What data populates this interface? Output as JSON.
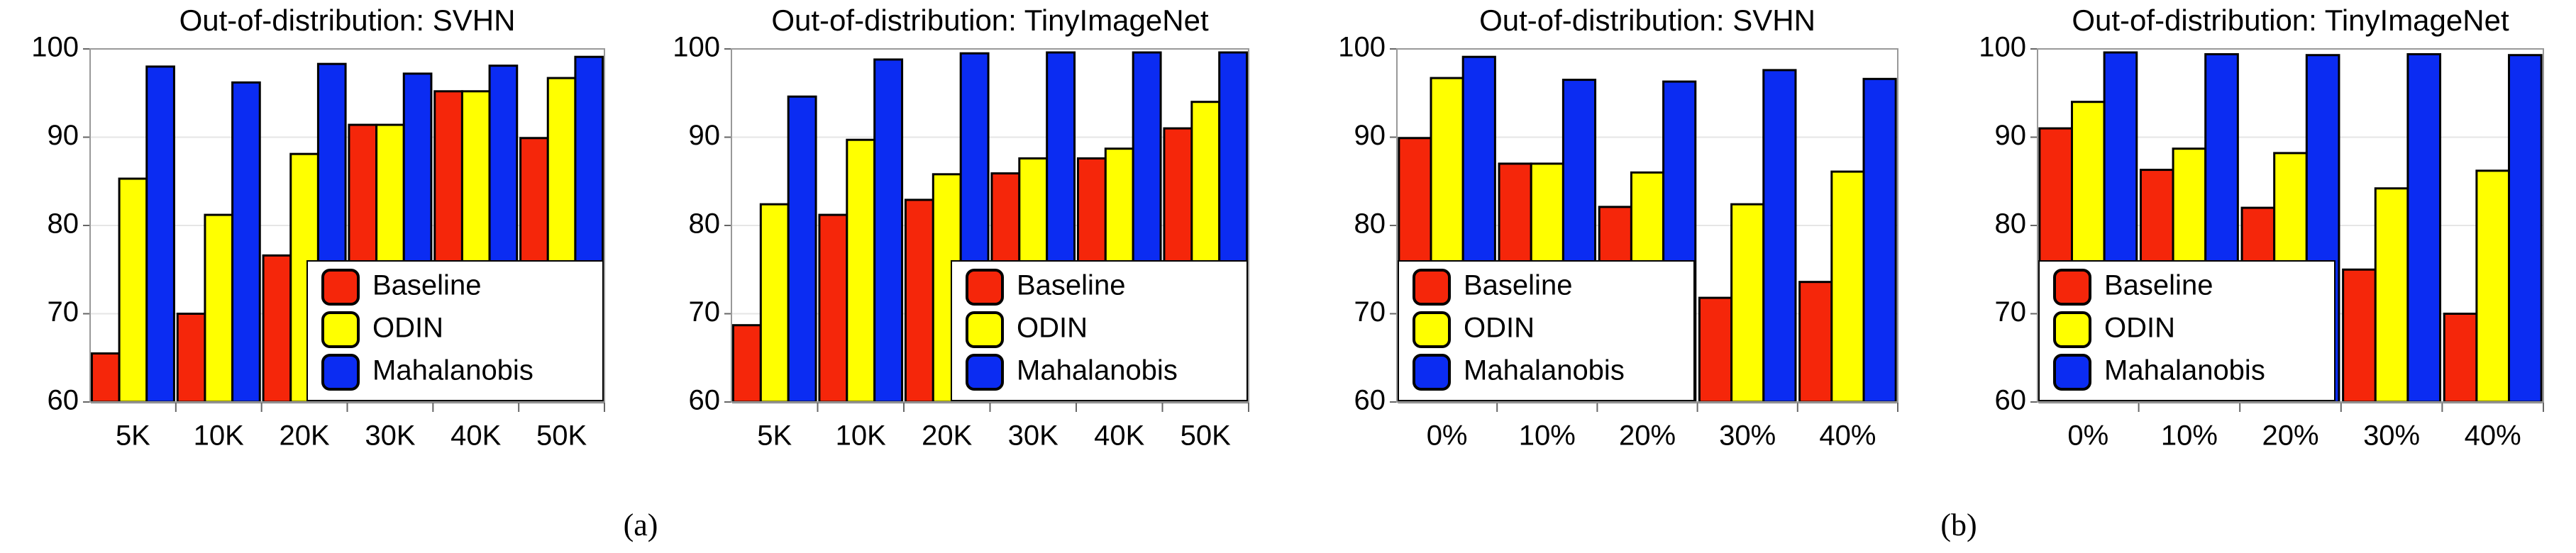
{
  "chart_data": [
    {
      "type": "bar",
      "title": "Out-of-distribution: SVHN",
      "categories": [
        "5K",
        "10K",
        "20K",
        "30K",
        "40K",
        "50K"
      ],
      "series": [
        {
          "name": "Baseline",
          "color": "#f5260a",
          "values": [
            65.5,
            70.0,
            76.6,
            91.4,
            95.2,
            89.9
          ]
        },
        {
          "name": "ODIN",
          "color": "#ffff00",
          "values": [
            85.3,
            81.2,
            88.1,
            91.4,
            95.2,
            96.7
          ]
        },
        {
          "name": "Mahalanobis",
          "color": "#0b2cf2",
          "values": [
            98.0,
            96.2,
            98.3,
            97.2,
            98.1,
            99.1
          ]
        }
      ],
      "ylim": [
        60,
        100
      ],
      "yticks": [
        60,
        70,
        80,
        90,
        100
      ],
      "grid": true,
      "legend": "lower right"
    },
    {
      "type": "bar",
      "title": "Out-of-distribution: TinyImageNet",
      "categories": [
        "5K",
        "10K",
        "20K",
        "30K",
        "40K",
        "50K"
      ],
      "series": [
        {
          "name": "Baseline",
          "color": "#f5260a",
          "values": [
            68.7,
            81.2,
            82.9,
            85.9,
            87.6,
            91.0
          ]
        },
        {
          "name": "ODIN",
          "color": "#ffff00",
          "values": [
            82.4,
            89.7,
            85.8,
            87.6,
            88.7,
            94.0
          ]
        },
        {
          "name": "Mahalanobis",
          "color": "#0b2cf2",
          "values": [
            94.6,
            98.8,
            99.5,
            99.6,
            99.6,
            99.6
          ]
        }
      ],
      "ylim": [
        60,
        100
      ],
      "yticks": [
        60,
        70,
        80,
        90,
        100
      ],
      "grid": true,
      "legend": "lower right"
    },
    {
      "type": "bar",
      "title": "Out-of-distribution: SVHN",
      "categories": [
        "0%",
        "10%",
        "20%",
        "30%",
        "40%"
      ],
      "series": [
        {
          "name": "Baseline",
          "color": "#f5260a",
          "values": [
            89.9,
            87.0,
            82.1,
            71.8,
            73.6
          ]
        },
        {
          "name": "ODIN",
          "color": "#ffff00",
          "values": [
            96.7,
            87.0,
            86.0,
            82.4,
            86.1
          ]
        },
        {
          "name": "Mahalanobis",
          "color": "#0b2cf2",
          "values": [
            99.1,
            96.5,
            96.3,
            97.6,
            96.6
          ]
        }
      ],
      "ylim": [
        60,
        100
      ],
      "yticks": [
        60,
        70,
        80,
        90,
        100
      ],
      "grid": true,
      "legend": "lower left"
    },
    {
      "type": "bar",
      "title": "Out-of-distribution: TinyImageNet",
      "categories": [
        "0%",
        "10%",
        "20%",
        "30%",
        "40%"
      ],
      "series": [
        {
          "name": "Baseline",
          "color": "#f5260a",
          "values": [
            91.0,
            86.3,
            82.0,
            75.0,
            70.0
          ]
        },
        {
          "name": "ODIN",
          "color": "#ffff00",
          "values": [
            94.0,
            88.7,
            88.2,
            84.2,
            86.2
          ]
        },
        {
          "name": "Mahalanobis",
          "color": "#0b2cf2",
          "values": [
            99.6,
            99.4,
            99.3,
            99.4,
            99.3
          ]
        }
      ],
      "ylim": [
        60,
        100
      ],
      "yticks": [
        60,
        70,
        80,
        90,
        100
      ],
      "grid": true,
      "legend": "lower left"
    }
  ],
  "captions": [
    "(a)",
    "(b)"
  ]
}
